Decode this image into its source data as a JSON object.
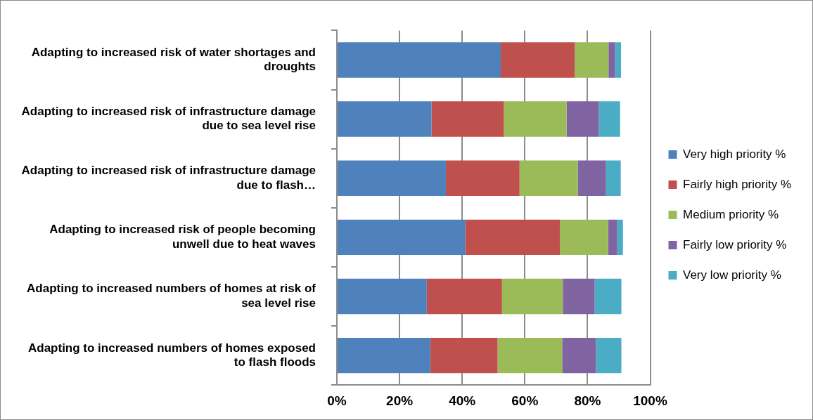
{
  "chart_data": {
    "type": "bar",
    "orientation": "horizontal",
    "stacked": true,
    "categories": [
      "Adapting to increased risk of water shortages and droughts",
      "Adapting to increased risk of infrastructure damage due to sea level rise",
      "Adapting to increased risk of infrastructure damage due to flash…",
      "Adapting to increased risk of people becoming unwell due to heat waves",
      "Adapting to increased numbers of homes at risk of sea level rise",
      "Adapting to increased numbers of homes exposed to flash floods"
    ],
    "series": [
      {
        "name": "Very high priority %",
        "color": "#4f81bd",
        "values": [
          52.3,
          30.2,
          34.8,
          41.0,
          28.7,
          29.8
        ]
      },
      {
        "name": "Fairly high priority %",
        "color": "#c0504d",
        "values": [
          23.6,
          23.1,
          23.5,
          30.2,
          24.0,
          21.5
        ]
      },
      {
        "name": "Medium priority %",
        "color": "#9bbb59",
        "values": [
          10.8,
          20.0,
          18.6,
          15.4,
          19.4,
          20.6
        ]
      },
      {
        "name": "Fairly low priority %",
        "color": "#8064a2",
        "values": [
          2.1,
          10.3,
          9.0,
          2.9,
          10.2,
          10.8
        ]
      },
      {
        "name": "Very low priority %",
        "color": "#4bacc6",
        "values": [
          1.9,
          6.8,
          4.7,
          1.8,
          8.5,
          8.1
        ]
      }
    ],
    "xlim": [
      0,
      100
    ],
    "xticks": [
      {
        "value": 0,
        "label": "0%"
      },
      {
        "value": 20,
        "label": "20%"
      },
      {
        "value": 40,
        "label": "40%"
      },
      {
        "value": 60,
        "label": "60%"
      },
      {
        "value": 80,
        "label": "80%"
      },
      {
        "value": 100,
        "label": "100%"
      }
    ],
    "grid": "x",
    "legend": "right"
  }
}
